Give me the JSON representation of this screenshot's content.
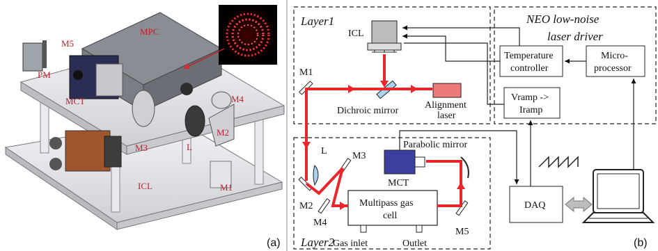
{
  "panel_a": {
    "labels": {
      "mpc": "MPC",
      "m5": "M5",
      "pm": "PM",
      "mct": "MCT",
      "m3": "M3",
      "m4": "M4",
      "m2": "M2",
      "l": "L",
      "icl": "ICL",
      "m1": "M1"
    },
    "panel_letter": "(a)"
  },
  "panel_b": {
    "layer1_title": "Layer1",
    "layer2_title": "Layer2",
    "neo_title_1": "NEO low-noise",
    "neo_title_2": "laser driver",
    "icl": "ICL",
    "m1": "M1",
    "dichroic": "Dichroic mirror",
    "alignment_1": "Alignment",
    "alignment_2": "laser",
    "temp_1": "Temperature",
    "temp_2": "controller",
    "micro_1": "Micro-",
    "micro_2": "processor",
    "vramp_1": "Vramp ->",
    "vramp_2": "Iramp",
    "parabolic": "Parabolic mirror",
    "l": "L",
    "m3": "M3",
    "mct": "MCT",
    "m2": "M2",
    "m4": "M4",
    "m5": "M5",
    "cell_1": "Multipass gas",
    "cell_2": "cell",
    "gas_inlet": "Gas inlet",
    "outlet": "Outlet",
    "daq": "DAQ",
    "panel_letter": "(b)"
  },
  "colors": {
    "beam": "#e8262b",
    "mct_box": "#3b3f9e",
    "alignment_laser": "#ec7a78",
    "dichroic": "#a9d2ee",
    "label_red": "#c0202a"
  }
}
